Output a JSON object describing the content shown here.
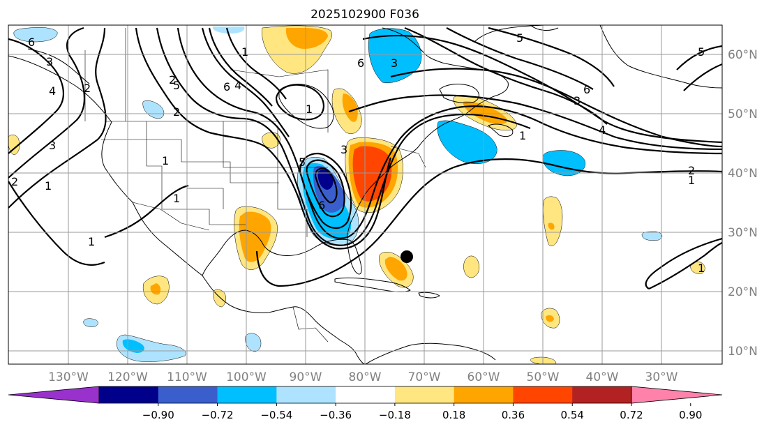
{
  "title": "2025102900 F036",
  "map": {
    "lon_labels": [
      "130°W",
      "120°W",
      "110°W",
      "100°W",
      "90°W",
      "80°W",
      "70°W",
      "60°W",
      "50°W",
      "40°W",
      "30°W"
    ],
    "lat_labels": [
      "60°N",
      "50°N",
      "40°N",
      "30°N",
      "20°N",
      "10°N"
    ],
    "gridlines": true
  },
  "contour_labels": [
    "6",
    "3",
    "4",
    "2",
    "2",
    "3",
    "1",
    "5",
    "6",
    "1",
    "4",
    "2",
    "1",
    "5",
    "3",
    "6",
    "3",
    "6",
    "6",
    "3",
    "4",
    "1",
    "1",
    "2",
    "1",
    "1",
    "5",
    "5",
    "2",
    "1",
    "1"
  ],
  "colorbar": {
    "colors": [
      "#9932cc",
      "#00008b",
      "#3a5fcd",
      "#00bfff",
      "#aee3ff",
      "#ffffff",
      "#ffe680",
      "#ffa500",
      "#ff4500",
      "#b22222",
      "#ff82ab"
    ],
    "tick_labels": [
      "−0.90",
      "−0.72",
      "−0.54",
      "−0.36",
      "−0.18",
      "0.18",
      "0.36",
      "0.54",
      "0.72",
      "0.90"
    ],
    "extend": "both"
  },
  "marker": {
    "name": "black dot",
    "color": "#000000"
  }
}
